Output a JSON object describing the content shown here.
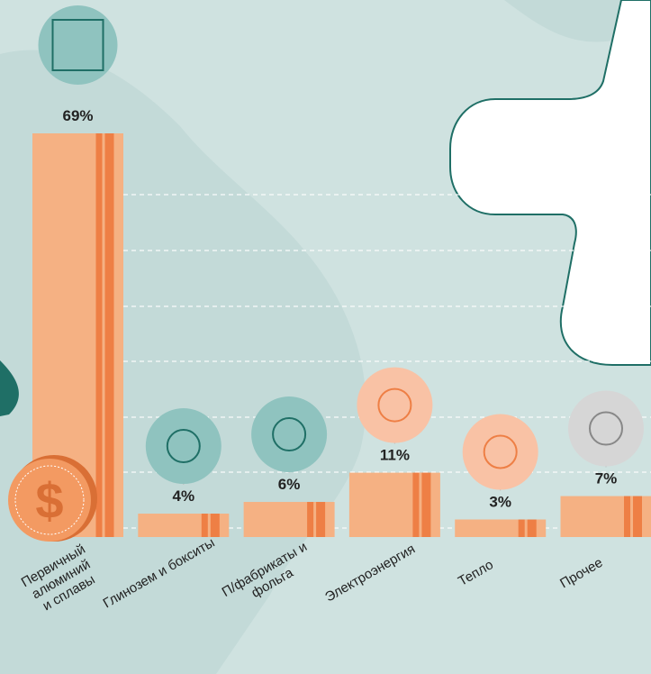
{
  "chart_data": {
    "type": "bar",
    "categories": [
      "Первичный\nалюминий\nи сплавы",
      "Глинозем и бокситы",
      "П/фабрикаты и\nфольга",
      "Электроэнергия",
      "Тепло",
      "Прочее"
    ],
    "values": [
      69,
      4,
      6,
      11,
      3,
      7
    ],
    "value_labels": [
      "69%",
      "4%",
      "6%",
      "11%",
      "3%",
      "7%"
    ],
    "color": "#f5b183",
    "ylim": [
      0,
      69
    ]
  }
}
